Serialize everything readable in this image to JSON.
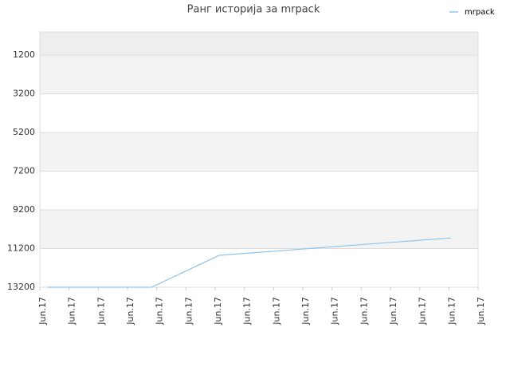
{
  "chart_data": {
    "type": "line",
    "title": "Ранг историја за mrpack",
    "series": [
      {
        "name": "mrpack",
        "color": "#8ec4ec",
        "x": [
          0.27,
          3.82,
          6.14,
          10,
          14.07
        ],
        "values": [
          13200,
          13200,
          11550,
          11110,
          10650
        ]
      }
    ],
    "xlim": [
      0,
      15
    ],
    "xticks": [
      {
        "value": 0,
        "label": "Jun.17"
      },
      {
        "value": 1,
        "label": "Jun.17"
      },
      {
        "value": 2,
        "label": "Jun.17"
      },
      {
        "value": 3,
        "label": "Jun.17"
      },
      {
        "value": 4,
        "label": "Jun.17"
      },
      {
        "value": 5,
        "label": "Jun.17"
      },
      {
        "value": 6,
        "label": "Jun.17"
      },
      {
        "value": 7,
        "label": "Jun.17"
      },
      {
        "value": 8,
        "label": "Jun.17"
      },
      {
        "value": 9,
        "label": "Jun.17"
      },
      {
        "value": 10,
        "label": "Jun.17"
      },
      {
        "value": 11,
        "label": "Jun.17"
      },
      {
        "value": 12,
        "label": "Jun.17"
      },
      {
        "value": 13,
        "label": "Jun.17"
      },
      {
        "value": 14,
        "label": "Jun.17"
      },
      {
        "value": 15,
        "label": "Jun.17"
      }
    ],
    "ylim": [
      0,
      13200
    ],
    "y_inverted": true,
    "yticks": [
      1200,
      3200,
      5200,
      7200,
      9200,
      11200,
      13200
    ],
    "grid": true,
    "legend": "top-right"
  }
}
